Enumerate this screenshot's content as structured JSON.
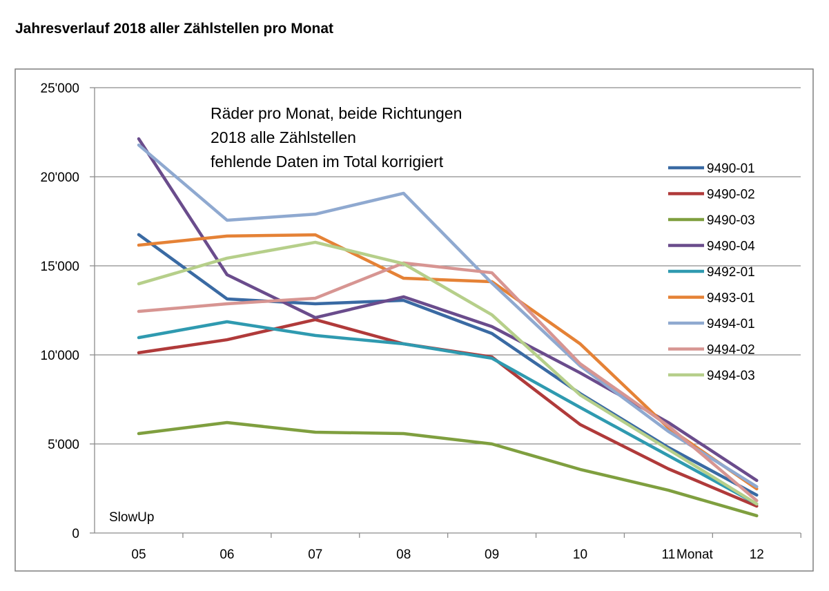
{
  "chart_data": {
    "type": "line",
    "title": "Jahresverlauf 2018 aller Zählstellen pro Monat",
    "annotation": [
      "Räder pro Monat, beide Richtungen",
      "2018 alle Zählstellen",
      "fehlende Daten  im Total korrigiert"
    ],
    "corner_label": "SlowUp",
    "xlabel": "Monat",
    "ylabel": "",
    "categories": [
      "05",
      "06",
      "07",
      "08",
      "09",
      "10",
      "11",
      "12"
    ],
    "yticks": [
      "0",
      "5'000",
      "10'000",
      "15'000",
      "20'000",
      "25'000"
    ],
    "ylim": [
      0,
      25000
    ],
    "grid": true,
    "legend_position": "right",
    "series": [
      {
        "name": "9490-01",
        "color": "#3a6aa3",
        "values": [
          16750,
          13140,
          12870,
          13060,
          11200,
          7830,
          4800,
          2130
        ]
      },
      {
        "name": "9490-02",
        "color": "#b03a3a",
        "values": [
          10120,
          10850,
          11980,
          10620,
          9880,
          6090,
          3600,
          1510
        ]
      },
      {
        "name": "9490-03",
        "color": "#7f9f3f",
        "values": [
          5580,
          6200,
          5660,
          5580,
          5000,
          3570,
          2400,
          970
        ]
      },
      {
        "name": "9490-04",
        "color": "#6a4c8c",
        "values": [
          22130,
          14500,
          12090,
          13260,
          11590,
          8990,
          6200,
          2950
        ]
      },
      {
        "name": "9492-01",
        "color": "#2f9ab0",
        "values": [
          10970,
          11860,
          11090,
          10620,
          9810,
          7050,
          4340,
          1630
        ]
      },
      {
        "name": "9493-01",
        "color": "#e58236",
        "values": [
          16160,
          16670,
          16740,
          14300,
          14110,
          10620,
          5900,
          2480
        ]
      },
      {
        "name": "9494-01",
        "color": "#8fa9d0",
        "values": [
          21780,
          17560,
          17900,
          19070,
          14030,
          9380,
          5700,
          2600
        ]
      },
      {
        "name": "9494-02",
        "color": "#d79592",
        "values": [
          12440,
          12870,
          13180,
          15160,
          14610,
          9500,
          6010,
          1820
        ]
      },
      {
        "name": "9494-03",
        "color": "#b6cf8a",
        "values": [
          13990,
          15430,
          16320,
          15120,
          12250,
          7750,
          4690,
          1630
        ]
      }
    ]
  }
}
